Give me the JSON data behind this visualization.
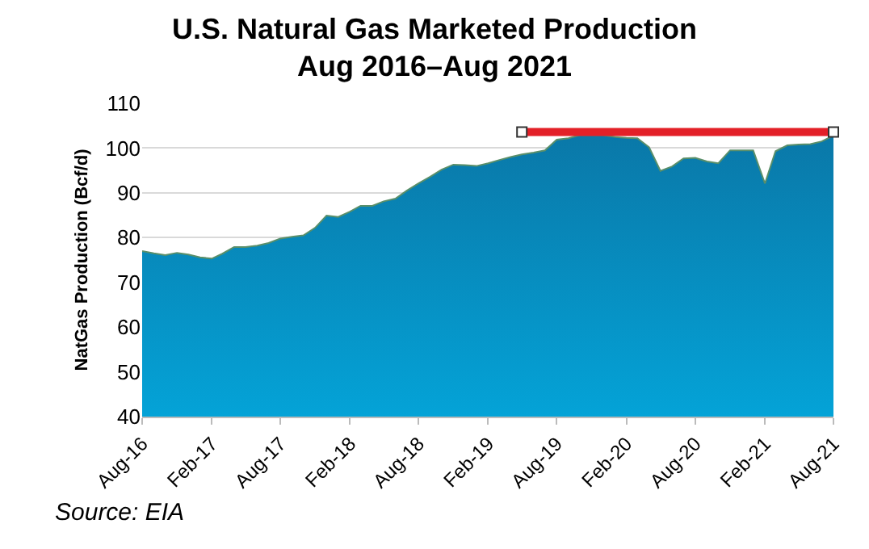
{
  "chart_data": {
    "type": "area",
    "title": "U.S. Natural Gas Marketed Production",
    "subtitle": "Aug 2016–Aug 2021",
    "ylabel": "NatGas Production (Bcf/d)",
    "x": [
      "2016-08",
      "2016-09",
      "2016-10",
      "2016-11",
      "2016-12",
      "2017-01",
      "2017-02",
      "2017-03",
      "2017-04",
      "2017-05",
      "2017-06",
      "2017-07",
      "2017-08",
      "2017-09",
      "2017-10",
      "2017-11",
      "2017-12",
      "2018-01",
      "2018-02",
      "2018-03",
      "2018-04",
      "2018-05",
      "2018-06",
      "2018-07",
      "2018-08",
      "2018-09",
      "2018-10",
      "2018-11",
      "2018-12",
      "2019-01",
      "2019-02",
      "2019-03",
      "2019-04",
      "2019-05",
      "2019-06",
      "2019-07",
      "2019-08",
      "2019-09",
      "2019-10",
      "2019-11",
      "2019-12",
      "2020-01",
      "2020-02",
      "2020-03",
      "2020-04",
      "2020-05",
      "2020-06",
      "2020-07",
      "2020-08",
      "2020-09",
      "2020-10",
      "2020-11",
      "2020-12",
      "2021-01",
      "2021-02",
      "2021-03",
      "2021-04",
      "2021-05",
      "2021-06",
      "2021-07",
      "2021-08"
    ],
    "series": [
      {
        "color": "#0a78a8",
        "values": [
          77.0,
          76.5,
          76.1,
          76.6,
          76.2,
          75.6,
          75.3,
          76.4,
          77.9,
          77.9,
          78.2,
          78.8,
          79.8,
          80.2,
          80.5,
          82.2,
          84.9,
          84.6,
          85.8,
          87.1,
          87.1,
          88.1,
          88.7,
          90.5,
          92.1,
          93.6,
          95.2,
          96.3,
          96.2,
          96.0,
          96.6,
          97.3,
          98.0,
          98.6,
          99.0,
          99.5,
          101.9,
          102.2,
          102.9,
          102.9,
          102.9,
          102.5,
          102.3,
          102.2,
          100.2,
          94.9,
          95.9,
          97.7,
          97.8,
          97.0,
          96.6,
          99.5,
          99.5,
          99.5,
          92.1,
          99.3,
          100.6,
          100.8,
          100.9,
          101.5,
          102.8
        ]
      },
      {
        "type": "line",
        "color": "#e32028",
        "marker": "square",
        "x": [
          "2019-05",
          "2021-08"
        ],
        "values": [
          103.6,
          103.6
        ]
      }
    ],
    "xlim": [
      "2016-08",
      "2021-08"
    ],
    "xticks": [
      {
        "value": "2016-08",
        "label": "Aug-16"
      },
      {
        "value": "2017-02",
        "label": "Feb-17"
      },
      {
        "value": "2017-08",
        "label": "Aug-17"
      },
      {
        "value": "2018-02",
        "label": "Feb-18"
      },
      {
        "value": "2018-08",
        "label": "Aug-18"
      },
      {
        "value": "2019-02",
        "label": "Feb-19"
      },
      {
        "value": "2019-08",
        "label": "Aug-19"
      },
      {
        "value": "2020-02",
        "label": "Feb-20"
      },
      {
        "value": "2020-08",
        "label": "Aug-20"
      },
      {
        "value": "2021-02",
        "label": "Feb-21"
      },
      {
        "value": "2021-08",
        "label": "Aug-21"
      }
    ],
    "ylim": [
      40,
      110
    ],
    "yticks": [
      40,
      50,
      60,
      70,
      80,
      90,
      100,
      110
    ],
    "grid": "y",
    "annotations": [
      "Source: EIA"
    ]
  }
}
